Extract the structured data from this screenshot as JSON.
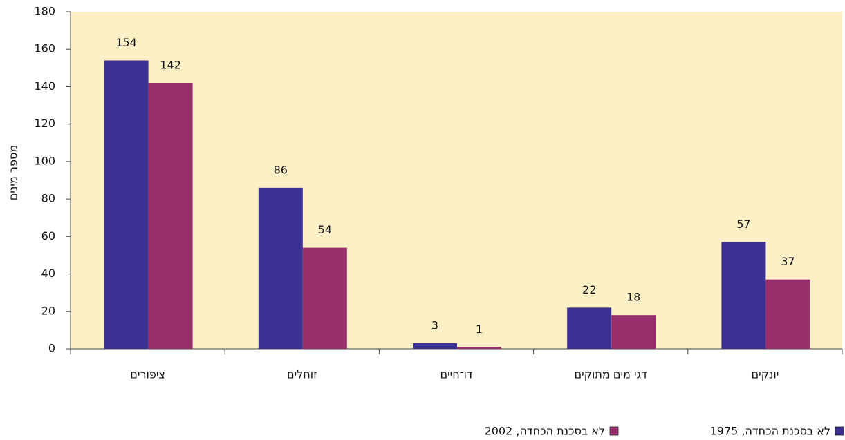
{
  "chart_data": {
    "type": "bar",
    "y_label": "מספר מינים",
    "categories": [
      "ציפורים",
      "זוחלים",
      "דו־חיים",
      "דגי מים מתוקים",
      "יונקים"
    ],
    "series": [
      {
        "name": "לא בסכנת הכחדה, 1975",
        "color": "#3a3192",
        "values": [
          154,
          86,
          3,
          22,
          57
        ]
      },
      {
        "name": "לא בסכנת הכחדה, 2002",
        "color": "#962f6b",
        "values": [
          142,
          54,
          1,
          18,
          37
        ]
      }
    ],
    "ylim": [
      0,
      180
    ],
    "yticks": [
      0,
      20,
      40,
      60,
      80,
      100,
      120,
      140,
      160,
      180
    ],
    "plot_background": "#fdf0c6",
    "legend": "bottom-right"
  }
}
